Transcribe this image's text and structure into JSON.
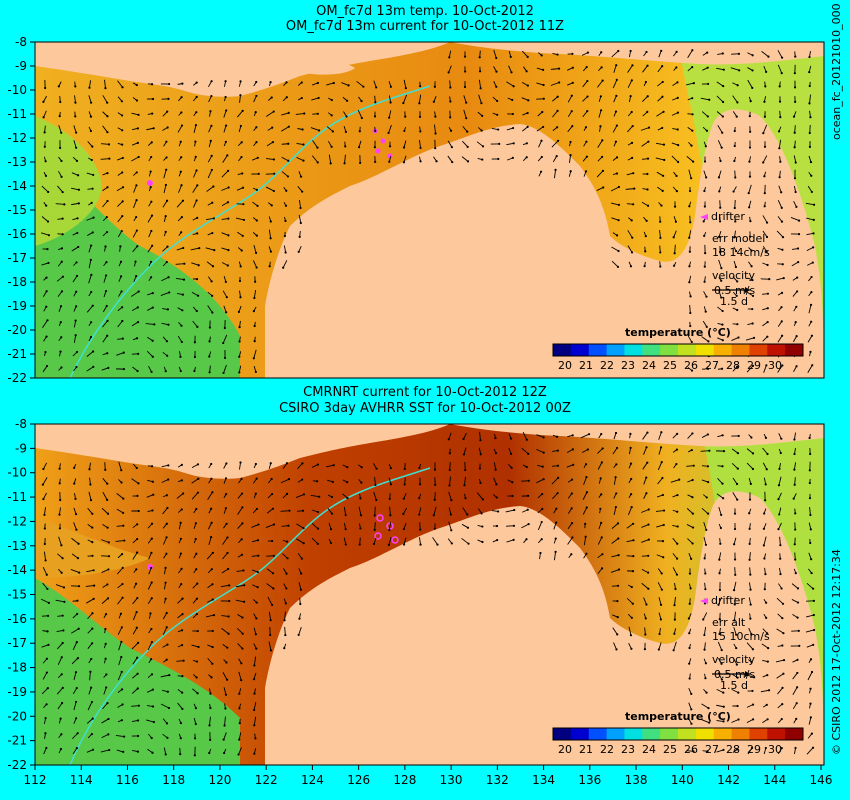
{
  "top_panel": {
    "title_line1": "OM_fc7d 13m temp. 10-Oct-2012",
    "title_line2": "OM_fc7d 13m current for 10-Oct-2012 11Z",
    "legend": {
      "drifter": "drifter",
      "err_label": "err model",
      "err_value": "18 14cm/s",
      "velocity_label": "velocity",
      "velocity_value": "0.5 m/s",
      "velocity_days": "1.5 d"
    },
    "colorbar_title": "temperature (°C)",
    "side_label": "ocean_fc_20121010_000"
  },
  "bottom_panel": {
    "title_line1": "CMRNRT current for 10-Oct-2012 12Z",
    "title_line2": "CSIRO 3day AVHRR SST for 10-Oct-2012 00Z",
    "legend": {
      "drifter": "drifter",
      "err_label": "err alt",
      "err_value": "15 10cm/s",
      "velocity_label": "velocity",
      "velocity_value": "0.5 m/s",
      "velocity_days": "1.5 d"
    },
    "colorbar_title": "temperature (°C)",
    "side_label": "© CSIRO 2012  17-Oct-2012 12:17:34"
  },
  "colorbar_ticks": [
    "20",
    "21",
    "22",
    "23",
    "24",
    "25",
    "26",
    "27",
    "28",
    "29",
    "30"
  ],
  "lat_ticks": [
    "-8",
    "-9",
    "-10",
    "-11",
    "-12",
    "-13",
    "-14",
    "-15",
    "-16",
    "-17",
    "-18",
    "-19",
    "-20",
    "-21",
    "-22"
  ],
  "lon_ticks": [
    "112",
    "114",
    "116",
    "118",
    "120",
    "122",
    "124",
    "126",
    "128",
    "130",
    "132",
    "134",
    "136",
    "138",
    "140",
    "142",
    "144",
    "146"
  ],
  "colors": {
    "land": "#fcc89c",
    "ocean_warm": "#f0a020",
    "ocean_cool": "#60d040",
    "hot": "#a02000",
    "drifter": "#ff40ff",
    "isobath": "#40e0d0"
  }
}
